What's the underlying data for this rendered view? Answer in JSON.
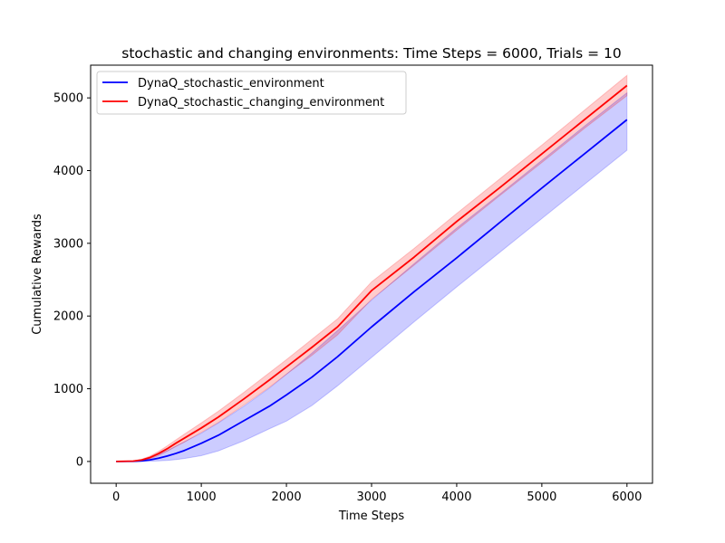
{
  "chart_data": {
    "type": "line",
    "title": "stochastic and changing environments: Time Steps = 6000, Trials = 10",
    "xlabel": "Time Steps",
    "ylabel": "Cumulative Rewards",
    "xlim": [
      -300,
      6300
    ],
    "ylim": [
      -300,
      5450
    ],
    "xticks": [
      0,
      1000,
      2000,
      3000,
      4000,
      5000,
      6000
    ],
    "yticks": [
      0,
      1000,
      2000,
      3000,
      4000,
      5000
    ],
    "grid": false,
    "legend_position": "upper-left",
    "series": [
      {
        "name": "DynaQ_stochastic_environment",
        "color": "#0000ff",
        "band_color": "#0000ff",
        "x": [
          0,
          200,
          300,
          400,
          500,
          600,
          700,
          800,
          1000,
          1200,
          1500,
          1800,
          2000,
          2300,
          2600,
          3000,
          3500,
          4000,
          4500,
          5000,
          5500,
          6000
        ],
        "mean": [
          0,
          2,
          8,
          22,
          45,
          75,
          110,
          150,
          250,
          360,
          560,
          760,
          915,
          1160,
          1440,
          1850,
          2335,
          2800,
          3280,
          3760,
          4230,
          4700
        ],
        "lower": [
          0,
          0,
          0,
          3,
          8,
          15,
          25,
          40,
          80,
          145,
          285,
          450,
          555,
          770,
          1040,
          1430,
          1920,
          2400,
          2870,
          3340,
          3810,
          4280
        ],
        "upper": [
          0,
          8,
          25,
          55,
          100,
          150,
          210,
          270,
          390,
          530,
          760,
          1010,
          1200,
          1490,
          1800,
          2220,
          2720,
          3210,
          3670,
          4140,
          4610,
          5070
        ]
      },
      {
        "name": "DynaQ_stochastic_changing_environment",
        "color": "#ff0000",
        "band_color": "#ff0000",
        "x": [
          0,
          200,
          300,
          400,
          500,
          600,
          700,
          800,
          1000,
          1200,
          1500,
          1800,
          2000,
          2300,
          2600,
          3000,
          3500,
          4000,
          4500,
          5000,
          5500,
          6000
        ],
        "mean": [
          0,
          5,
          20,
          55,
          110,
          175,
          250,
          320,
          460,
          610,
          860,
          1120,
          1300,
          1570,
          1850,
          2350,
          2810,
          3300,
          3760,
          4230,
          4700,
          5170
        ],
        "lower": [
          0,
          2,
          12,
          38,
          82,
          140,
          205,
          265,
          400,
          535,
          775,
          1020,
          1200,
          1460,
          1740,
          2230,
          2700,
          3180,
          3650,
          4110,
          4580,
          5030
        ],
        "upper": [
          0,
          8,
          30,
          75,
          140,
          215,
          295,
          375,
          530,
          690,
          950,
          1220,
          1400,
          1680,
          1960,
          2470,
          2930,
          3410,
          3880,
          4350,
          4830,
          5310
        ]
      }
    ]
  }
}
